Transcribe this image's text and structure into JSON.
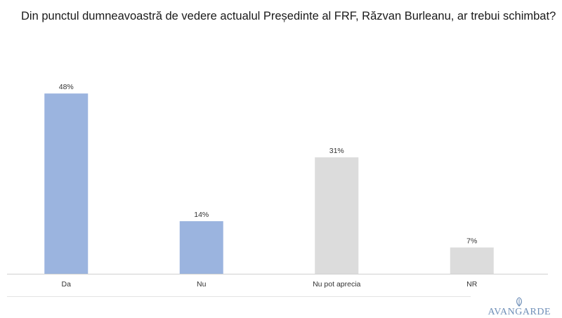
{
  "page": {
    "question": "Din punctul dumneavoastră de vedere actualul Președinte al FRF, Răzvan Burleanu, ar trebui schimbat?",
    "brand": "AVANGARDE"
  },
  "chart_data": {
    "type": "bar",
    "categories": [
      "Da",
      "Nu",
      "Nu pot aprecia",
      "NR"
    ],
    "values": [
      48,
      14,
      31,
      7
    ],
    "value_labels": [
      "48%",
      "14%",
      "31%",
      "7%"
    ],
    "bar_colors": [
      "#9bb4df",
      "#9bb4df",
      "#dcdcdc",
      "#dcdcdc"
    ],
    "title": "",
    "xlabel": "",
    "ylabel": "",
    "ylim": [
      0,
      50
    ],
    "grid": false,
    "legend": "none"
  }
}
